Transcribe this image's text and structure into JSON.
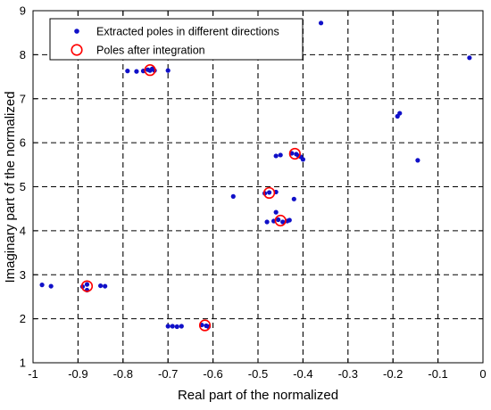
{
  "chart_data": {
    "type": "scatter",
    "xlabel": "Real part of the normalized",
    "ylabel": "Imaginary part of the normalized",
    "xlim": [
      -1,
      0
    ],
    "ylim": [
      1,
      9
    ],
    "xticks": [
      -1,
      -0.9,
      -0.8,
      -0.7,
      -0.6,
      -0.5,
      -0.4,
      -0.3,
      -0.2,
      -0.1,
      0
    ],
    "xtick_labels": [
      "-1",
      "-0.9",
      "-0.8",
      "-0.7",
      "-0.6",
      "-0.5",
      "-0.4",
      "-0.3",
      "-0.2",
      "-0.1",
      "0"
    ],
    "yticks": [
      1,
      2,
      3,
      4,
      5,
      6,
      7,
      8,
      9
    ],
    "ytick_labels": [
      "1",
      "2",
      "3",
      "4",
      "5",
      "6",
      "7",
      "8",
      "9"
    ],
    "grid": true,
    "grid_style": "dashed",
    "legend_position": "top-left",
    "series": [
      {
        "name": "Extracted poles in different directions",
        "marker": "dot",
        "color": "#1010c8",
        "points": [
          [
            -0.98,
            2.77
          ],
          [
            -0.96,
            2.74
          ],
          [
            -0.89,
            2.73
          ],
          [
            -0.88,
            2.65
          ],
          [
            -0.88,
            2.78
          ],
          [
            -0.85,
            2.75
          ],
          [
            -0.84,
            2.74
          ],
          [
            -0.79,
            7.63
          ],
          [
            -0.77,
            7.62
          ],
          [
            -0.755,
            7.63
          ],
          [
            -0.745,
            7.66
          ],
          [
            -0.74,
            7.64
          ],
          [
            -0.735,
            7.68
          ],
          [
            -0.73,
            7.64
          ],
          [
            -0.7,
            7.64
          ],
          [
            -0.7,
            1.83
          ],
          [
            -0.69,
            1.83
          ],
          [
            -0.68,
            1.82
          ],
          [
            -0.67,
            1.83
          ],
          [
            -0.625,
            1.86
          ],
          [
            -0.615,
            1.84
          ],
          [
            -0.61,
            1.82
          ],
          [
            -0.555,
            4.78
          ],
          [
            -0.485,
            4.85
          ],
          [
            -0.475,
            4.87
          ],
          [
            -0.46,
            4.88
          ],
          [
            -0.48,
            4.2
          ],
          [
            -0.465,
            4.22
          ],
          [
            -0.46,
            4.42
          ],
          [
            -0.455,
            4.25
          ],
          [
            -0.445,
            4.2
          ],
          [
            -0.435,
            4.22
          ],
          [
            -0.43,
            4.24
          ],
          [
            -0.46,
            5.7
          ],
          [
            -0.45,
            5.72
          ],
          [
            -0.425,
            5.76
          ],
          [
            -0.415,
            5.74
          ],
          [
            -0.41,
            5.7
          ],
          [
            -0.405,
            5.68
          ],
          [
            -0.4,
            5.62
          ],
          [
            -0.42,
            4.72
          ],
          [
            -0.36,
            8.72
          ],
          [
            -0.19,
            6.6
          ],
          [
            -0.185,
            6.67
          ],
          [
            -0.145,
            5.6
          ],
          [
            -0.03,
            7.93
          ]
        ]
      },
      {
        "name": "Poles after integration",
        "marker": "circle",
        "color": "#ff0000",
        "points": [
          [
            -0.88,
            2.74
          ],
          [
            -0.74,
            7.65
          ],
          [
            -0.618,
            1.85
          ],
          [
            -0.475,
            4.86
          ],
          [
            -0.45,
            4.23
          ],
          [
            -0.418,
            5.75
          ]
        ]
      }
    ]
  }
}
